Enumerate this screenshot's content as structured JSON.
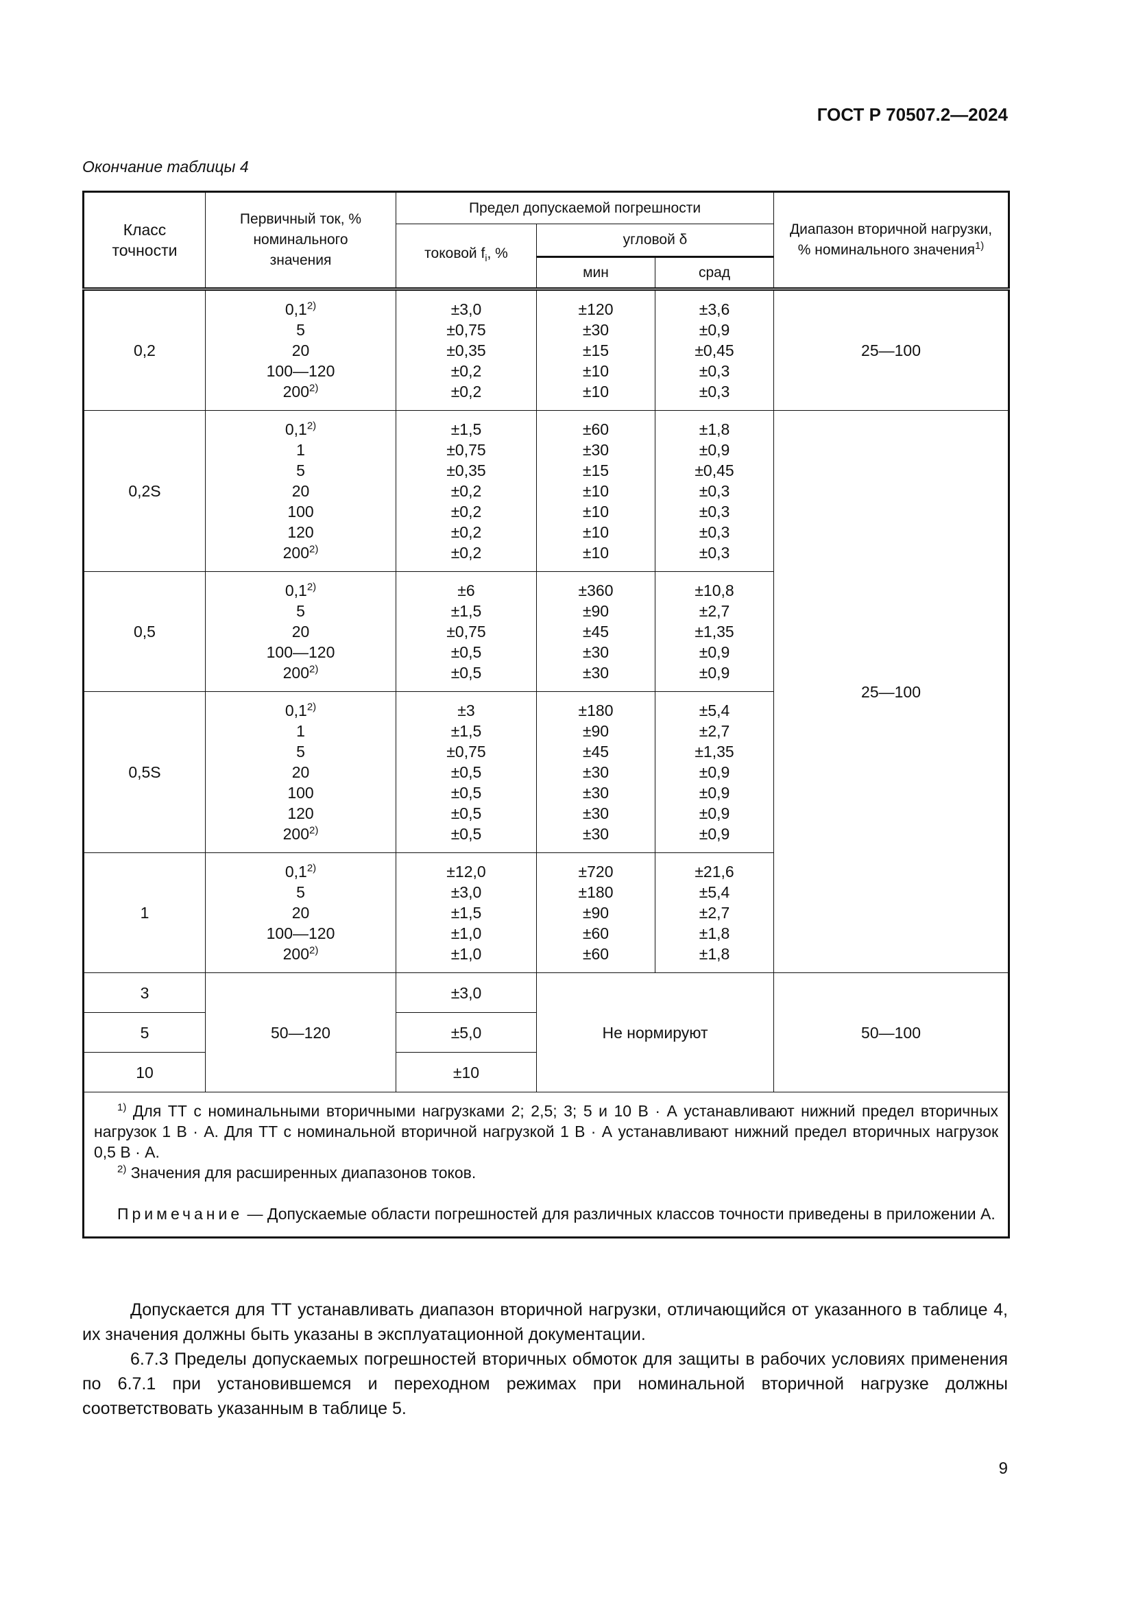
{
  "header": {
    "doc_id": "ГОСТ Р 70507.2—2024",
    "continuation": "Окончание таблицы 4"
  },
  "table": {
    "headers": {
      "class": "Класс точности",
      "primary": "Первичный ток, % номинального значения",
      "limit": "Предел допускаемой погрешности",
      "current": "токовой f",
      "current_sub": "i",
      "current_unit": ", %",
      "angular": "угловой δ",
      "min": "мин",
      "crad": "срад",
      "range": "Диапазон вторичной нагрузки, % номинального значения",
      "range_sup": "1)"
    },
    "groups": [
      {
        "class": "0,2",
        "range": "25—100",
        "rows": [
          [
            "0,1",
            "2)",
            "±3,0",
            "±120",
            "±3,6"
          ],
          [
            "5",
            "",
            "±0,75",
            "±30",
            "±0,9"
          ],
          [
            "20",
            "",
            "±0,35",
            "±15",
            "±0,45"
          ],
          [
            "100—120",
            "",
            "±0,2",
            "±10",
            "±0,3"
          ],
          [
            "200",
            "2)",
            "±0,2",
            "±10",
            "±0,3"
          ]
        ]
      },
      {
        "class": "0,2S",
        "range": "25—100",
        "rows": [
          [
            "0,1",
            "2)",
            "±1,5",
            "±60",
            "±1,8"
          ],
          [
            "1",
            "",
            "±0,75",
            "±30",
            "±0,9"
          ],
          [
            "5",
            "",
            "±0,35",
            "±15",
            "±0,45"
          ],
          [
            "20",
            "",
            "±0,2",
            "±10",
            "±0,3"
          ],
          [
            "100",
            "",
            "±0,2",
            "±10",
            "±0,3"
          ],
          [
            "120",
            "",
            "±0,2",
            "±10",
            "±0,3"
          ],
          [
            "200",
            "2)",
            "±0,2",
            "±10",
            "±0,3"
          ]
        ]
      },
      {
        "class": "0,5",
        "rows": [
          [
            "0,1",
            "2)",
            "±6",
            "±360",
            "±10,8"
          ],
          [
            "5",
            "",
            "±1,5",
            "±90",
            "±2,7"
          ],
          [
            "20",
            "",
            "±0,75",
            "±45",
            "±1,35"
          ],
          [
            "100—120",
            "",
            "±0,5",
            "±30",
            "±0,9"
          ],
          [
            "200",
            "2)",
            "±0,5",
            "±30",
            "±0,9"
          ]
        ]
      },
      {
        "class": "0,5S",
        "rows": [
          [
            "0,1",
            "2)",
            "±3",
            "±180",
            "±5,4"
          ],
          [
            "1",
            "",
            "±1,5",
            "±90",
            "±2,7"
          ],
          [
            "5",
            "",
            "±0,75",
            "±45",
            "±1,35"
          ],
          [
            "20",
            "",
            "±0,5",
            "±30",
            "±0,9"
          ],
          [
            "100",
            "",
            "±0,5",
            "±30",
            "±0,9"
          ],
          [
            "120",
            "",
            "±0,5",
            "±30",
            "±0,9"
          ],
          [
            "200",
            "2)",
            "±0,5",
            "±30",
            "±0,9"
          ]
        ]
      },
      {
        "class": "1",
        "rows": [
          [
            "0,1",
            "2)",
            "±12,0",
            "±720",
            "±21,6"
          ],
          [
            "5",
            "",
            "±3,0",
            "±180",
            "±5,4"
          ],
          [
            "20",
            "",
            "±1,5",
            "±90",
            "±2,7"
          ],
          [
            "100—120",
            "",
            "±1,0",
            "±60",
            "±1,8"
          ],
          [
            "200",
            "2)",
            "±1,0",
            "±60",
            "±1,8"
          ]
        ]
      }
    ],
    "low_classes": {
      "primary": "50—120",
      "angular": "Не нормируют",
      "range": "50—100",
      "rows": [
        {
          "class": "3",
          "current": "±3,0"
        },
        {
          "class": "5",
          "current": "±5,0"
        },
        {
          "class": "10",
          "current": "±10"
        }
      ]
    },
    "footnotes": {
      "fn1_mark": "1)",
      "fn1": "Для ТТ с номинальными вторичными нагрузками 2; 2,5; 3; 5 и 10 В · А устанавливают нижний предел вторичных нагрузок 1 В · А. Для ТТ с номинальной вторичной нагрузкой 1 В · А устанавливают нижний предел вторичных нагрузок 0,5 В · А.",
      "fn2_mark": "2)",
      "fn2": "Значения для расширенных диапазонов токов.",
      "note_label": "Примечание",
      "note": " — Допускаемые области погрешностей для различных классов точности приведены в приложении А."
    }
  },
  "body": {
    "p1": "Допускается для ТТ устанавливать диапазон вторичной нагрузки, отличающийся от указанного в таблице 4, их значения должны быть указаны в эксплуатационной документации.",
    "p2": "6.7.3 Пределы допускаемых погрешностей вторичных обмоток для защиты в рабочих условиях применения по 6.7.1 при установившемся и переходном режимах при номинальной вторичной нагрузке должны соответствовать указанным в таблице 5."
  },
  "page_number": "9"
}
